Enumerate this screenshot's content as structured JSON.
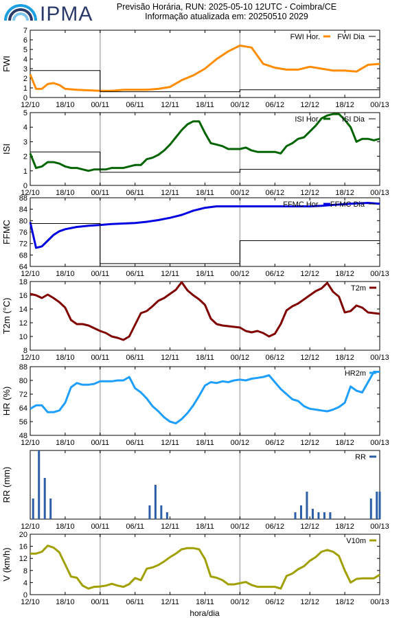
{
  "header": {
    "logo_text": "IPMA",
    "title_line1": "Previsão Horária, RUN: 2025-05-10 12UTC - Coimbra/CE",
    "title_line2": "Informação atualizada em: 20250510 2029"
  },
  "shared_x_axis": {
    "tick_labels": [
      "12/10",
      "18/10",
      "00/11",
      "06/11",
      "12/11",
      "18/11",
      "00/12",
      "06/12",
      "12/12",
      "18/12",
      "00/13"
    ],
    "xlabel": "hora/dia"
  },
  "chart_data": [
    {
      "id": "fwi",
      "type": "line",
      "ylabel": "FWI",
      "ylim": [
        0,
        7
      ],
      "yticks": [
        0,
        1,
        2,
        3,
        4,
        5,
        6,
        7
      ],
      "legend_position": "top-right",
      "colors": {
        "hourly": "#ff8c00",
        "daily": "#000000"
      },
      "series": [
        {
          "name": "FWI Hor.",
          "kind": "hourly",
          "x": [
            0,
            1,
            2,
            3,
            4,
            5,
            6,
            8,
            10,
            12,
            14,
            16,
            18,
            20,
            22,
            24,
            26,
            28,
            30,
            32,
            34,
            36,
            38,
            40,
            42,
            44,
            46,
            48,
            50,
            52,
            54,
            56,
            58,
            60
          ],
          "values": [
            2.4,
            0.9,
            0.9,
            1.4,
            1.5,
            1.3,
            0.9,
            0.8,
            0.75,
            0.7,
            0.7,
            0.8,
            0.8,
            0.8,
            0.9,
            1.1,
            1.8,
            2.3,
            3.0,
            4.0,
            4.8,
            5.4,
            5.2,
            3.5,
            3.1,
            2.9,
            2.9,
            3.2,
            3.0,
            2.8,
            2.8,
            2.7,
            3.4,
            3.5
          ]
        },
        {
          "name": "FWI Dia",
          "kind": "daily",
          "steps": [
            {
              "from": 0,
              "to": 12,
              "value": 2.8
            },
            {
              "from": 12,
              "to": 36,
              "value": 0.6
            },
            {
              "from": 36,
              "to": 60,
              "value": 0.8
            }
          ]
        }
      ]
    },
    {
      "id": "isi",
      "type": "line",
      "ylabel": "ISI",
      "ylim": [
        0,
        5
      ],
      "yticks": [
        0,
        1,
        2,
        3,
        4,
        5
      ],
      "legend_position": "top-right",
      "colors": {
        "hourly": "#006400",
        "daily": "#000000"
      },
      "series": [
        {
          "name": "ISI Hor.",
          "kind": "hourly",
          "x": [
            0,
            1,
            2,
            3,
            4,
            5,
            6,
            7,
            8,
            9,
            10,
            11,
            12,
            13,
            14,
            15,
            16,
            17,
            18,
            19,
            20,
            21,
            22,
            23,
            24,
            25,
            26,
            27,
            28,
            29,
            30,
            31,
            32,
            33,
            34,
            35,
            36,
            37,
            38,
            39,
            40,
            41,
            42,
            43,
            44,
            45,
            46,
            47,
            48,
            49,
            50,
            51,
            52,
            53,
            54,
            55,
            56,
            57,
            58,
            59,
            60
          ],
          "values": [
            2.2,
            1.2,
            1.3,
            1.6,
            1.6,
            1.5,
            1.3,
            1.2,
            1.2,
            1.1,
            1.0,
            1.1,
            1.1,
            1.1,
            1.2,
            1.2,
            1.2,
            1.3,
            1.4,
            1.4,
            1.8,
            1.9,
            2.1,
            2.4,
            2.8,
            3.3,
            3.8,
            4.2,
            4.4,
            4.4,
            3.6,
            2.9,
            2.8,
            2.7,
            2.5,
            2.5,
            2.5,
            2.6,
            2.4,
            2.3,
            2.3,
            2.3,
            2.3,
            2.2,
            2.7,
            2.9,
            3.2,
            3.3,
            3.7,
            4.1,
            4.6,
            4.8,
            4.9,
            4.9,
            4.5,
            4.0,
            3.0,
            3.2,
            3.2,
            3.1,
            3.2
          ]
        },
        {
          "name": "ISI Dia",
          "kind": "daily",
          "steps": [
            {
              "from": 0,
              "to": 12,
              "value": 2.3
            },
            {
              "from": 12,
              "to": 36,
              "value": 0.9
            },
            {
              "from": 36,
              "to": 60,
              "value": 1.1
            }
          ]
        }
      ]
    },
    {
      "id": "ffmc",
      "type": "line",
      "ylabel": "FFMC",
      "ylim": [
        64,
        88
      ],
      "yticks": [
        64,
        68,
        72,
        76,
        80,
        84,
        88
      ],
      "legend_position": "top-right",
      "colors": {
        "hourly": "#0000e0",
        "daily": "#000000"
      },
      "series": [
        {
          "name": "FFMC Hor.",
          "kind": "hourly",
          "x": [
            0,
            1,
            2,
            3,
            4,
            5,
            6,
            8,
            10,
            12,
            14,
            16,
            18,
            20,
            22,
            24,
            26,
            28,
            30,
            32,
            34,
            36,
            38,
            40,
            42,
            44,
            46,
            48,
            50,
            52,
            54,
            56,
            58,
            60
          ],
          "values": [
            79.5,
            70.5,
            71,
            73,
            75,
            76.3,
            77,
            77.8,
            78.2,
            78.5,
            78.8,
            79,
            79.2,
            79.6,
            80.2,
            81,
            82,
            83.5,
            84.5,
            85,
            85,
            85,
            85,
            85,
            85,
            85,
            85,
            85,
            85.2,
            85.5,
            85.8,
            86,
            86.2,
            85.9
          ]
        },
        {
          "name": "FFMC Dia",
          "kind": "daily",
          "steps": [
            {
              "from": 0,
              "to": 12,
              "value": 79
            },
            {
              "from": 12,
              "to": 36,
              "value": 65
            },
            {
              "from": 36,
              "to": 60,
              "value": 73
            }
          ]
        }
      ]
    },
    {
      "id": "t2m",
      "type": "line",
      "ylabel": "T2m (°C)",
      "ylim": [
        8,
        18
      ],
      "yticks": [
        8,
        10,
        12,
        14,
        16,
        18
      ],
      "legend_position": "top-right",
      "colors": {
        "hourly": "#800000"
      },
      "series": [
        {
          "name": "T2m",
          "kind": "hourly",
          "x": [
            0,
            1,
            2,
            3,
            4,
            5,
            6,
            7,
            8,
            9,
            10,
            11,
            12,
            13,
            14,
            15,
            16,
            17,
            18,
            19,
            20,
            21,
            22,
            23,
            24,
            25,
            26,
            27,
            28,
            29,
            30,
            31,
            32,
            33,
            34,
            35,
            36,
            37,
            38,
            39,
            40,
            41,
            42,
            43,
            44,
            45,
            46,
            47,
            48,
            49,
            50,
            51,
            52,
            53,
            54,
            55,
            56,
            57,
            58,
            59,
            60
          ],
          "values": [
            16.2,
            16.0,
            15.6,
            16.1,
            15.6,
            15.0,
            14.2,
            12.4,
            11.8,
            11.8,
            11.6,
            11.2,
            10.8,
            10.5,
            10.0,
            9.8,
            9.5,
            10.0,
            11.7,
            13.4,
            13.7,
            14.4,
            15.2,
            15.6,
            16.2,
            16.8,
            17.9,
            16.7,
            16.0,
            15.4,
            14.6,
            12.6,
            11.8,
            11.6,
            11.5,
            11.4,
            11.3,
            10.8,
            10.6,
            10.8,
            10.5,
            10.0,
            10.4,
            11.8,
            13.8,
            14.4,
            14.8,
            15.4,
            16.0,
            16.6,
            17.0,
            17.8,
            16.5,
            15.8,
            13.5,
            13.7,
            14.5,
            14.2,
            13.5,
            13.4,
            13.3
          ]
        }
      ]
    },
    {
      "id": "hr2m",
      "type": "line",
      "ylabel": "HR (%)",
      "ylim": [
        48,
        88
      ],
      "yticks": [
        48,
        56,
        64,
        72,
        80,
        88
      ],
      "legend_position": "top-right",
      "colors": {
        "hourly": "#1e9fff"
      },
      "series": [
        {
          "name": "HR2m",
          "kind": "hourly",
          "x": [
            0,
            1,
            2,
            3,
            4,
            5,
            6,
            7,
            8,
            9,
            10,
            11,
            12,
            13,
            14,
            15,
            16,
            17,
            18,
            19,
            20,
            21,
            22,
            23,
            24,
            25,
            26,
            27,
            28,
            29,
            30,
            31,
            32,
            33,
            34,
            35,
            36,
            37,
            38,
            39,
            40,
            41,
            42,
            43,
            44,
            45,
            46,
            47,
            48,
            49,
            50,
            51,
            52,
            53,
            54,
            55,
            56,
            57,
            58,
            59,
            60
          ],
          "values": [
            63.5,
            65.5,
            65.5,
            61.5,
            61.5,
            62.5,
            67,
            76,
            78.5,
            77.5,
            77.5,
            78,
            79.5,
            79.5,
            79.5,
            80,
            80,
            82,
            75.5,
            73,
            69.5,
            65,
            62,
            58.5,
            56,
            55,
            57.5,
            61,
            65.5,
            71,
            77,
            79,
            78.5,
            79.5,
            79,
            80,
            80.5,
            80,
            81,
            81.5,
            82,
            83,
            79,
            75,
            72,
            69,
            68,
            65,
            63.5,
            63,
            62.5,
            62,
            63,
            64.5,
            67,
            76.5,
            74,
            73,
            79,
            85,
            85
          ]
        }
      ]
    },
    {
      "id": "rr",
      "type": "bar",
      "ylabel": "RR (mm)",
      "ylim": [
        0,
        1
      ],
      "yticks": [],
      "legend_position": "top-right",
      "colors": {
        "hourly": "#2b5ea7"
      },
      "series": [
        {
          "name": "RR",
          "kind": "bars",
          "x": [
            0.5,
            1.5,
            2.5,
            3.5,
            20.5,
            21.5,
            22.5,
            23.5,
            45.5,
            46.5,
            47.5,
            48.5,
            49.5,
            50.5,
            51.5,
            58.5,
            59.5,
            60
          ],
          "values": [
            0.3,
            1.0,
            0.6,
            0.3,
            0.2,
            0.5,
            0.2,
            0.1,
            0.1,
            0.2,
            0.4,
            0.15,
            0.1,
            0.1,
            0.1,
            0.3,
            0.4,
            0.4
          ]
        }
      ]
    },
    {
      "id": "v10m",
      "type": "line",
      "ylabel": "V (km/h)",
      "ylim": [
        0,
        20
      ],
      "yticks": [
        0,
        4,
        8,
        12,
        16,
        20
      ],
      "legend_position": "top-right",
      "colors": {
        "hourly": "#a0a000"
      },
      "series": [
        {
          "name": "V10m",
          "kind": "hourly",
          "x": [
            0,
            1,
            2,
            3,
            4,
            5,
            6,
            7,
            8,
            9,
            10,
            11,
            12,
            13,
            14,
            15,
            16,
            17,
            18,
            19,
            20,
            21,
            22,
            23,
            24,
            25,
            26,
            27,
            28,
            29,
            30,
            31,
            32,
            33,
            34,
            35,
            36,
            37,
            38,
            39,
            40,
            41,
            42,
            43,
            44,
            45,
            46,
            47,
            48,
            49,
            50,
            51,
            52,
            53,
            54,
            55,
            56,
            57,
            58,
            59,
            60
          ],
          "values": [
            13.6,
            13.6,
            14.2,
            16.2,
            15.6,
            14.0,
            10.0,
            6.0,
            5.6,
            3.0,
            2.0,
            2.6,
            2.7,
            3.0,
            3.6,
            3.0,
            2.6,
            3.5,
            5.5,
            4.8,
            8.6,
            9.0,
            9.8,
            11.0,
            12.4,
            13.6,
            15.0,
            15.4,
            15.4,
            15.0,
            11.8,
            6.0,
            5.6,
            4.8,
            3.4,
            3.4,
            3.8,
            4.2,
            3.2,
            2.6,
            2.6,
            2.6,
            2.6,
            2.0,
            6.2,
            7.0,
            8.4,
            9.4,
            11.2,
            12.4,
            14.2,
            14.8,
            14.2,
            12.8,
            8.0,
            4.0,
            5.2,
            5.4,
            5.4,
            5.4,
            6.6
          ]
        }
      ]
    }
  ]
}
